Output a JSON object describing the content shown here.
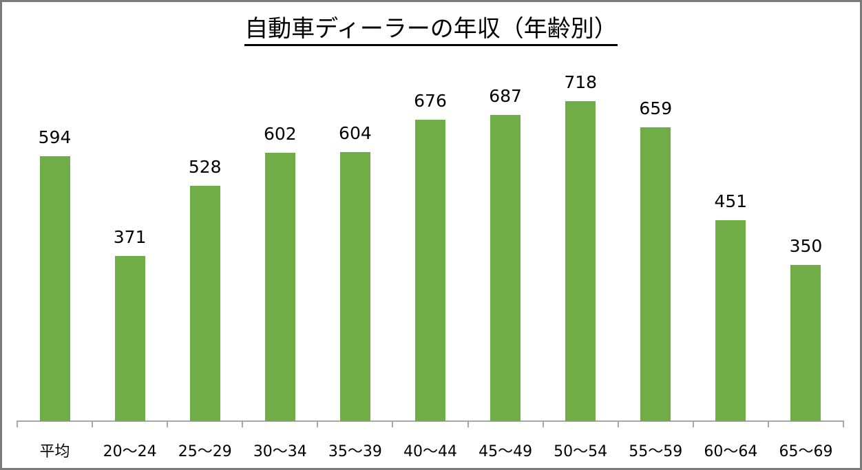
{
  "chart_data": {
    "type": "bar",
    "title": "自動車ディーラーの年収（年齢別）",
    "xlabel": "",
    "ylabel": "",
    "categories": [
      "平均",
      "20～24",
      "25～29",
      "30～34",
      "35～39",
      "40～44",
      "45～49",
      "50～54",
      "55～59",
      "60～64",
      "65～69"
    ],
    "values": [
      594,
      371,
      528,
      602,
      604,
      676,
      687,
      718,
      659,
      451,
      350
    ],
    "ylim": [
      0,
      940
    ],
    "grid": false,
    "legend": "none",
    "data_labels": true,
    "bar_color": "#70ad47"
  },
  "title": "自動車ディーラーの年収（年齢別）"
}
